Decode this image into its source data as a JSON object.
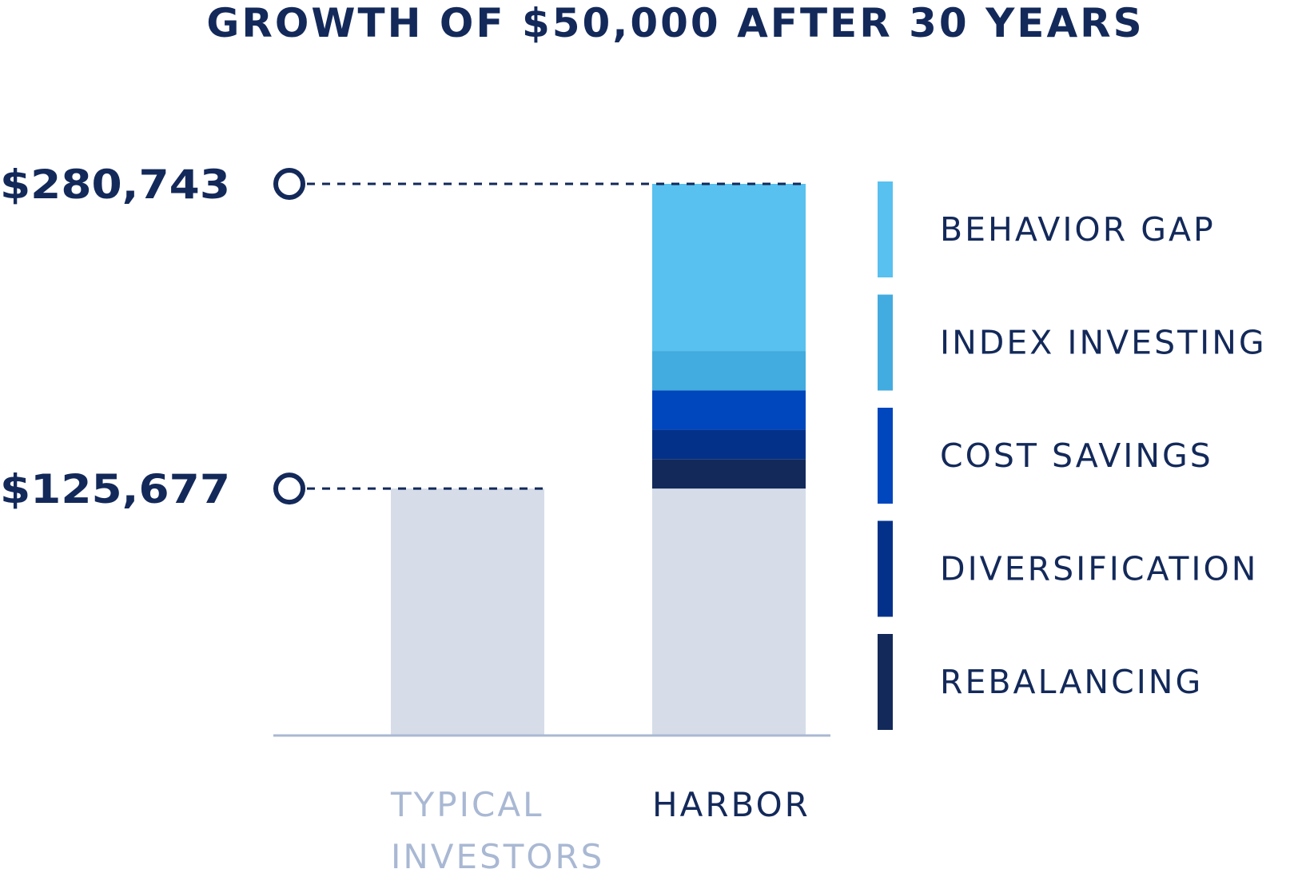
{
  "chart_data": {
    "type": "bar",
    "stacked": true,
    "title": "GROWTH OF $50,000 AFTER 30 YEARS",
    "xlabel": "",
    "ylabel": "",
    "categories": [
      "TYPICAL",
      "HARBOR"
    ],
    "category_labels": [
      [
        "TYPICAL",
        "INVESTORS"
      ],
      [
        "HARBOR"
      ]
    ],
    "category_colors": [
      "#a9b8d3",
      "#13295a"
    ],
    "base": {
      "values": [
        125677,
        125677
      ],
      "color": "#d6dde9"
    },
    "series": [
      {
        "name": "REBALANCING",
        "values": [
          0,
          15000
        ],
        "color": "#13295a"
      },
      {
        "name": "DIVERSIFICATION",
        "values": [
          0,
          15000
        ],
        "color": "#03318a"
      },
      {
        "name": "COST SAVINGS",
        "values": [
          0,
          20000
        ],
        "color": "#0046bd"
      },
      {
        "name": "INDEX INVESTING",
        "values": [
          0,
          20000
        ],
        "color": "#42abdf"
      },
      {
        "name": "BEHAVIOR GAP",
        "values": [
          0,
          85066
        ],
        "color": "#58c1ef"
      }
    ],
    "reference_lines": [
      {
        "label": "$280,743",
        "value": 280743
      },
      {
        "label": "$125,677",
        "value": 125677
      }
    ],
    "ylim": [
      0,
      280743
    ],
    "grid": false,
    "legend_position": "right",
    "legend_order": [
      "BEHAVIOR GAP",
      "INDEX INVESTING",
      "COST SAVINGS",
      "DIVERSIFICATION",
      "REBALANCING"
    ],
    "colors": {
      "text": "#13295a",
      "axis": "#a9b8d3"
    }
  }
}
